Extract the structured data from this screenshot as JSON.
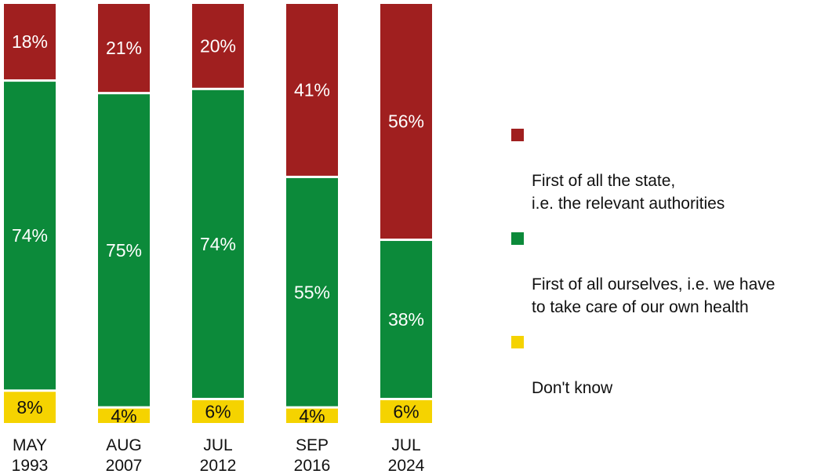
{
  "chart_data": {
    "type": "bar",
    "stacked": true,
    "percent": true,
    "categories": [
      "MAY\n1993",
      "AUG\n2007",
      "JUL\n2012",
      "SEP\n2016",
      "JUL\n2024"
    ],
    "series": [
      {
        "name": "Don't know",
        "color": "#f5d300",
        "text_color": "#111111",
        "values": [
          8,
          4,
          6,
          4,
          6
        ],
        "labels": [
          "8%",
          "4%",
          "6%",
          "4%",
          "6%"
        ]
      },
      {
        "name": "First of all ourselves, i.e. we have\nto take care of our own health",
        "color": "#0c8a3a",
        "text_color": "#ffffff",
        "values": [
          74,
          75,
          74,
          55,
          38
        ],
        "labels": [
          "74%",
          "75%",
          "74%",
          "55%",
          "38%"
        ]
      },
      {
        "name": "First of all the state,\ni.e. the relevant authorities",
        "color": "#a01f1f",
        "text_color": "#ffffff",
        "values": [
          18,
          21,
          20,
          41,
          56
        ],
        "labels": [
          "18%",
          "21%",
          "20%",
          "41%",
          "56%"
        ]
      }
    ],
    "legend_order": [
      2,
      1,
      0
    ],
    "ylim": [
      0,
      100
    ],
    "legend_position": "right",
    "grid": false
  }
}
